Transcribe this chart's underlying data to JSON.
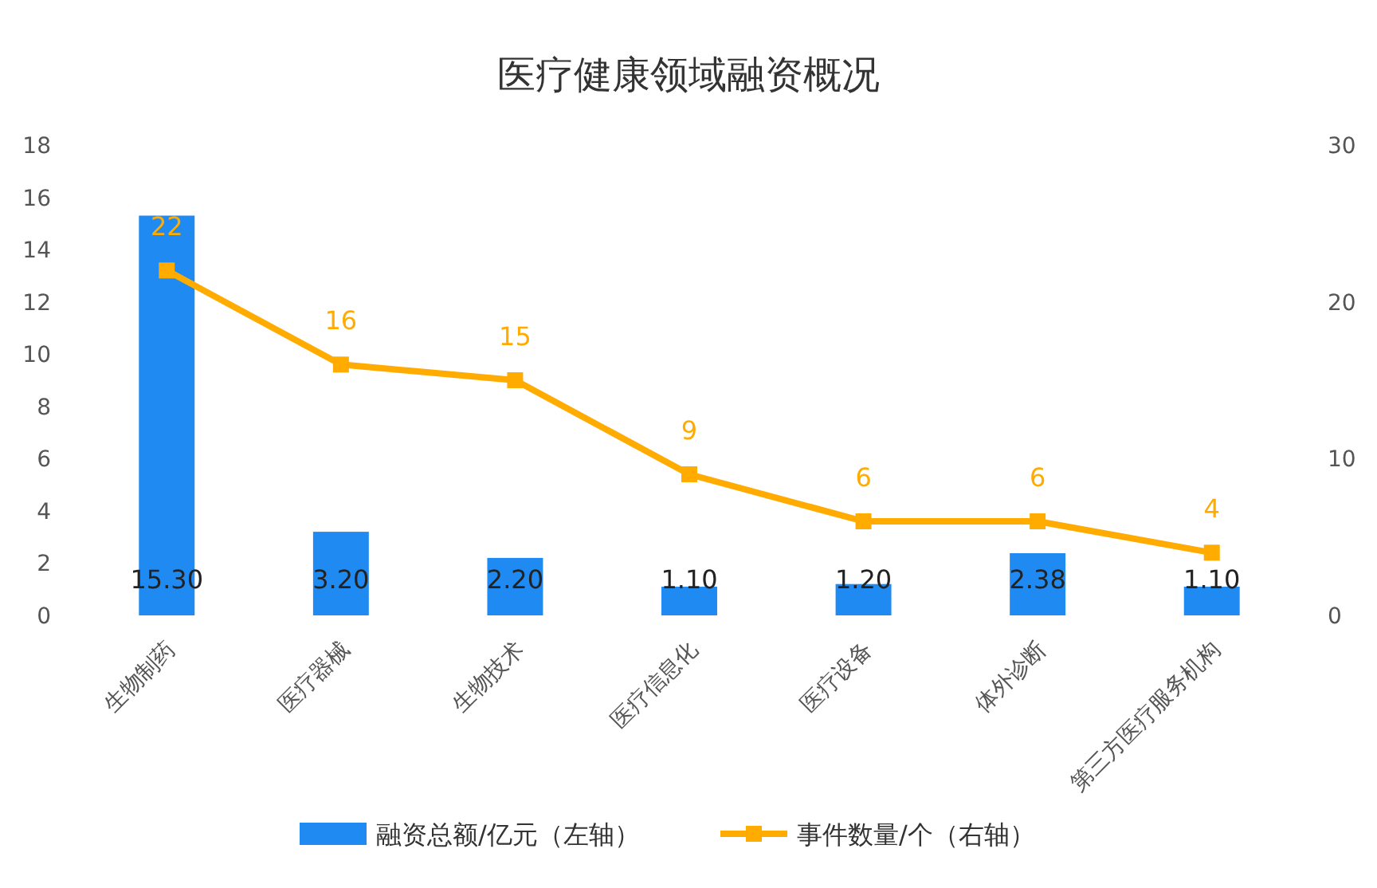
{
  "chart_data": {
    "type": "bar",
    "title": "医疗健康领域融资概况",
    "categories": [
      "生物制药",
      "医疗器械",
      "生物技术",
      "医疗信息化",
      "医疗设备",
      "体外诊断",
      "第三方医疗服务机构"
    ],
    "series": [
      {
        "name": "融资总额/亿元（左轴）",
        "color": "#1f8bf2",
        "values": [
          15.3,
          3.2,
          2.2,
          1.1,
          1.2,
          2.38,
          1.1
        ],
        "value_labels": [
          "15.30",
          "3.20",
          "2.20",
          "1.10",
          "1.20",
          "2.38",
          "1.10"
        ]
      },
      {
        "name": "事件数量/个（右轴）",
        "type": "line",
        "axis": "y2",
        "color": "#ffab00",
        "values": [
          22,
          16,
          15,
          9,
          6,
          6,
          4
        ],
        "value_labels": [
          "22",
          "16",
          "15",
          "9",
          "6",
          "6",
          "4"
        ]
      }
    ],
    "ylim": [
      0,
      18
    ],
    "yticks": [
      0,
      2,
      4,
      6,
      8,
      10,
      12,
      14,
      16,
      18
    ],
    "y2lim": [
      0,
      30
    ],
    "y2ticks": [
      0,
      10,
      20,
      30
    ],
    "marker": "square",
    "line_style": "solid",
    "legend": "bottom"
  }
}
